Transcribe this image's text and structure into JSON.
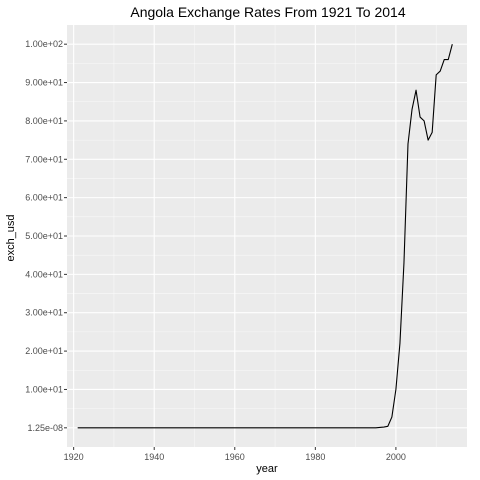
{
  "chart_data": {
    "type": "line",
    "title": "Angola Exchange Rates From 1921 To 2014",
    "xlabel": "year",
    "ylabel": "exch_usd",
    "xlim": [
      1918.35,
      2017.65
    ],
    "ylim": [
      -5.0,
      105.0
    ],
    "x_ticks": [
      {
        "value": 1920,
        "label": "1920"
      },
      {
        "value": 1940,
        "label": "1940"
      },
      {
        "value": 1960,
        "label": "1960"
      },
      {
        "value": 1980,
        "label": "1980"
      },
      {
        "value": 2000,
        "label": "2000"
      }
    ],
    "y_ticks": [
      {
        "value": 1.25e-08,
        "label": "1.25e-08"
      },
      {
        "value": 10,
        "label": "1.00e+01"
      },
      {
        "value": 20,
        "label": "2.00e+01"
      },
      {
        "value": 30,
        "label": "3.00e+01"
      },
      {
        "value": 40,
        "label": "4.00e+01"
      },
      {
        "value": 50,
        "label": "5.00e+01"
      },
      {
        "value": 60,
        "label": "6.00e+01"
      },
      {
        "value": 70,
        "label": "7.00e+01"
      },
      {
        "value": 80,
        "label": "8.00e+01"
      },
      {
        "value": 90,
        "label": "9.00e+01"
      },
      {
        "value": 100,
        "label": "1.00e+02"
      }
    ],
    "grid": true,
    "background": "#ebebeb",
    "grid_color": "#ffffff",
    "line_color": "#000000",
    "series": [
      {
        "x": [
          1921,
          1930,
          1940,
          1950,
          1960,
          1970,
          1980,
          1990,
          1994,
          1995,
          1996,
          1997,
          1998,
          1999,
          2000,
          2001,
          2002,
          2003,
          2004,
          2005,
          2006,
          2007,
          2008,
          2009,
          2010,
          2011,
          2012,
          2013,
          2014
        ],
        "y": [
          0,
          0,
          0,
          0,
          0,
          0,
          0,
          0,
          0,
          0.001,
          0.1,
          0.2,
          0.4,
          2.8,
          10,
          22,
          43,
          74,
          83,
          88,
          81,
          80,
          75,
          77,
          92,
          93,
          96,
          96,
          100
        ]
      }
    ]
  }
}
